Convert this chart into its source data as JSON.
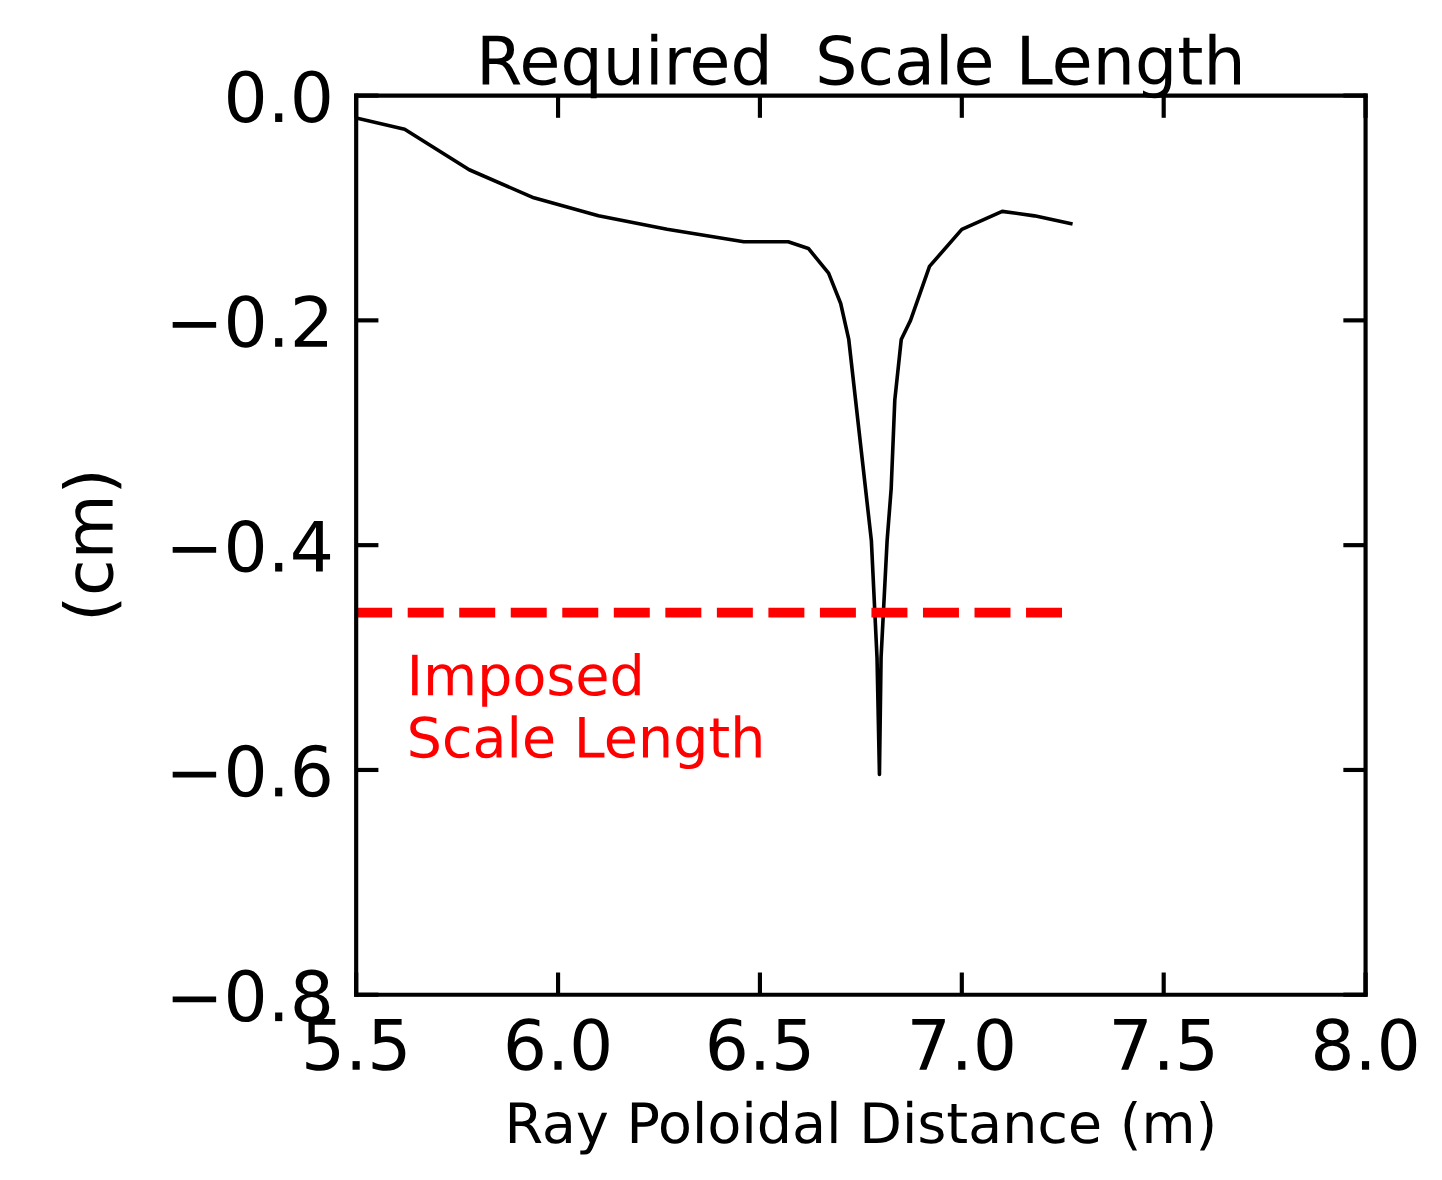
{
  "chart_data": {
    "type": "line",
    "title": "Required  Scale Length",
    "xlabel": "Ray Poloidal Distance (m)",
    "ylabel": "(cm)",
    "xlim": [
      5.5,
      8.0
    ],
    "ylim": [
      -0.8,
      0.0
    ],
    "xticks": [
      5.5,
      {
        "value": 6,
        "label": "6.0"
      },
      6.5,
      {
        "value": 7,
        "label": "7.0"
      },
      7.5,
      {
        "value": 8,
        "label": "8.0"
      }
    ],
    "yticks": [
      -0.8,
      -0.6,
      -0.4,
      -0.2,
      {
        "value": 0,
        "label": "0.0"
      }
    ],
    "grid": false,
    "legend": false,
    "marker": "none",
    "series": [
      {
        "color": "#000000",
        "line_style": "solid",
        "x": [
          5.5,
          5.62,
          5.78,
          5.94,
          6.1,
          6.27,
          6.46,
          6.57,
          6.62,
          6.67,
          6.7,
          6.72,
          6.776,
          6.79,
          6.796,
          6.8,
          6.815,
          6.825,
          6.834,
          6.85,
          6.873,
          6.92,
          7.0,
          7.1,
          7.18,
          7.27
        ],
        "values": [
          -0.02,
          -0.03,
          -0.066,
          -0.091,
          -0.107,
          -0.119,
          -0.13,
          -0.13,
          -0.136,
          -0.158,
          -0.185,
          -0.217,
          -0.396,
          -0.5,
          -0.604,
          -0.5,
          -0.396,
          -0.35,
          -0.271,
          -0.217,
          -0.2,
          -0.152,
          -0.119,
          -0.103,
          -0.107,
          -0.114
        ]
      },
      {
        "color": "#ff0000",
        "line_style": "dashed",
        "x": [
          5.5,
          7.25
        ],
        "values": [
          -0.46,
          -0.46
        ]
      }
    ],
    "annotations": [
      "Imposed\nScale Length"
    ]
  }
}
